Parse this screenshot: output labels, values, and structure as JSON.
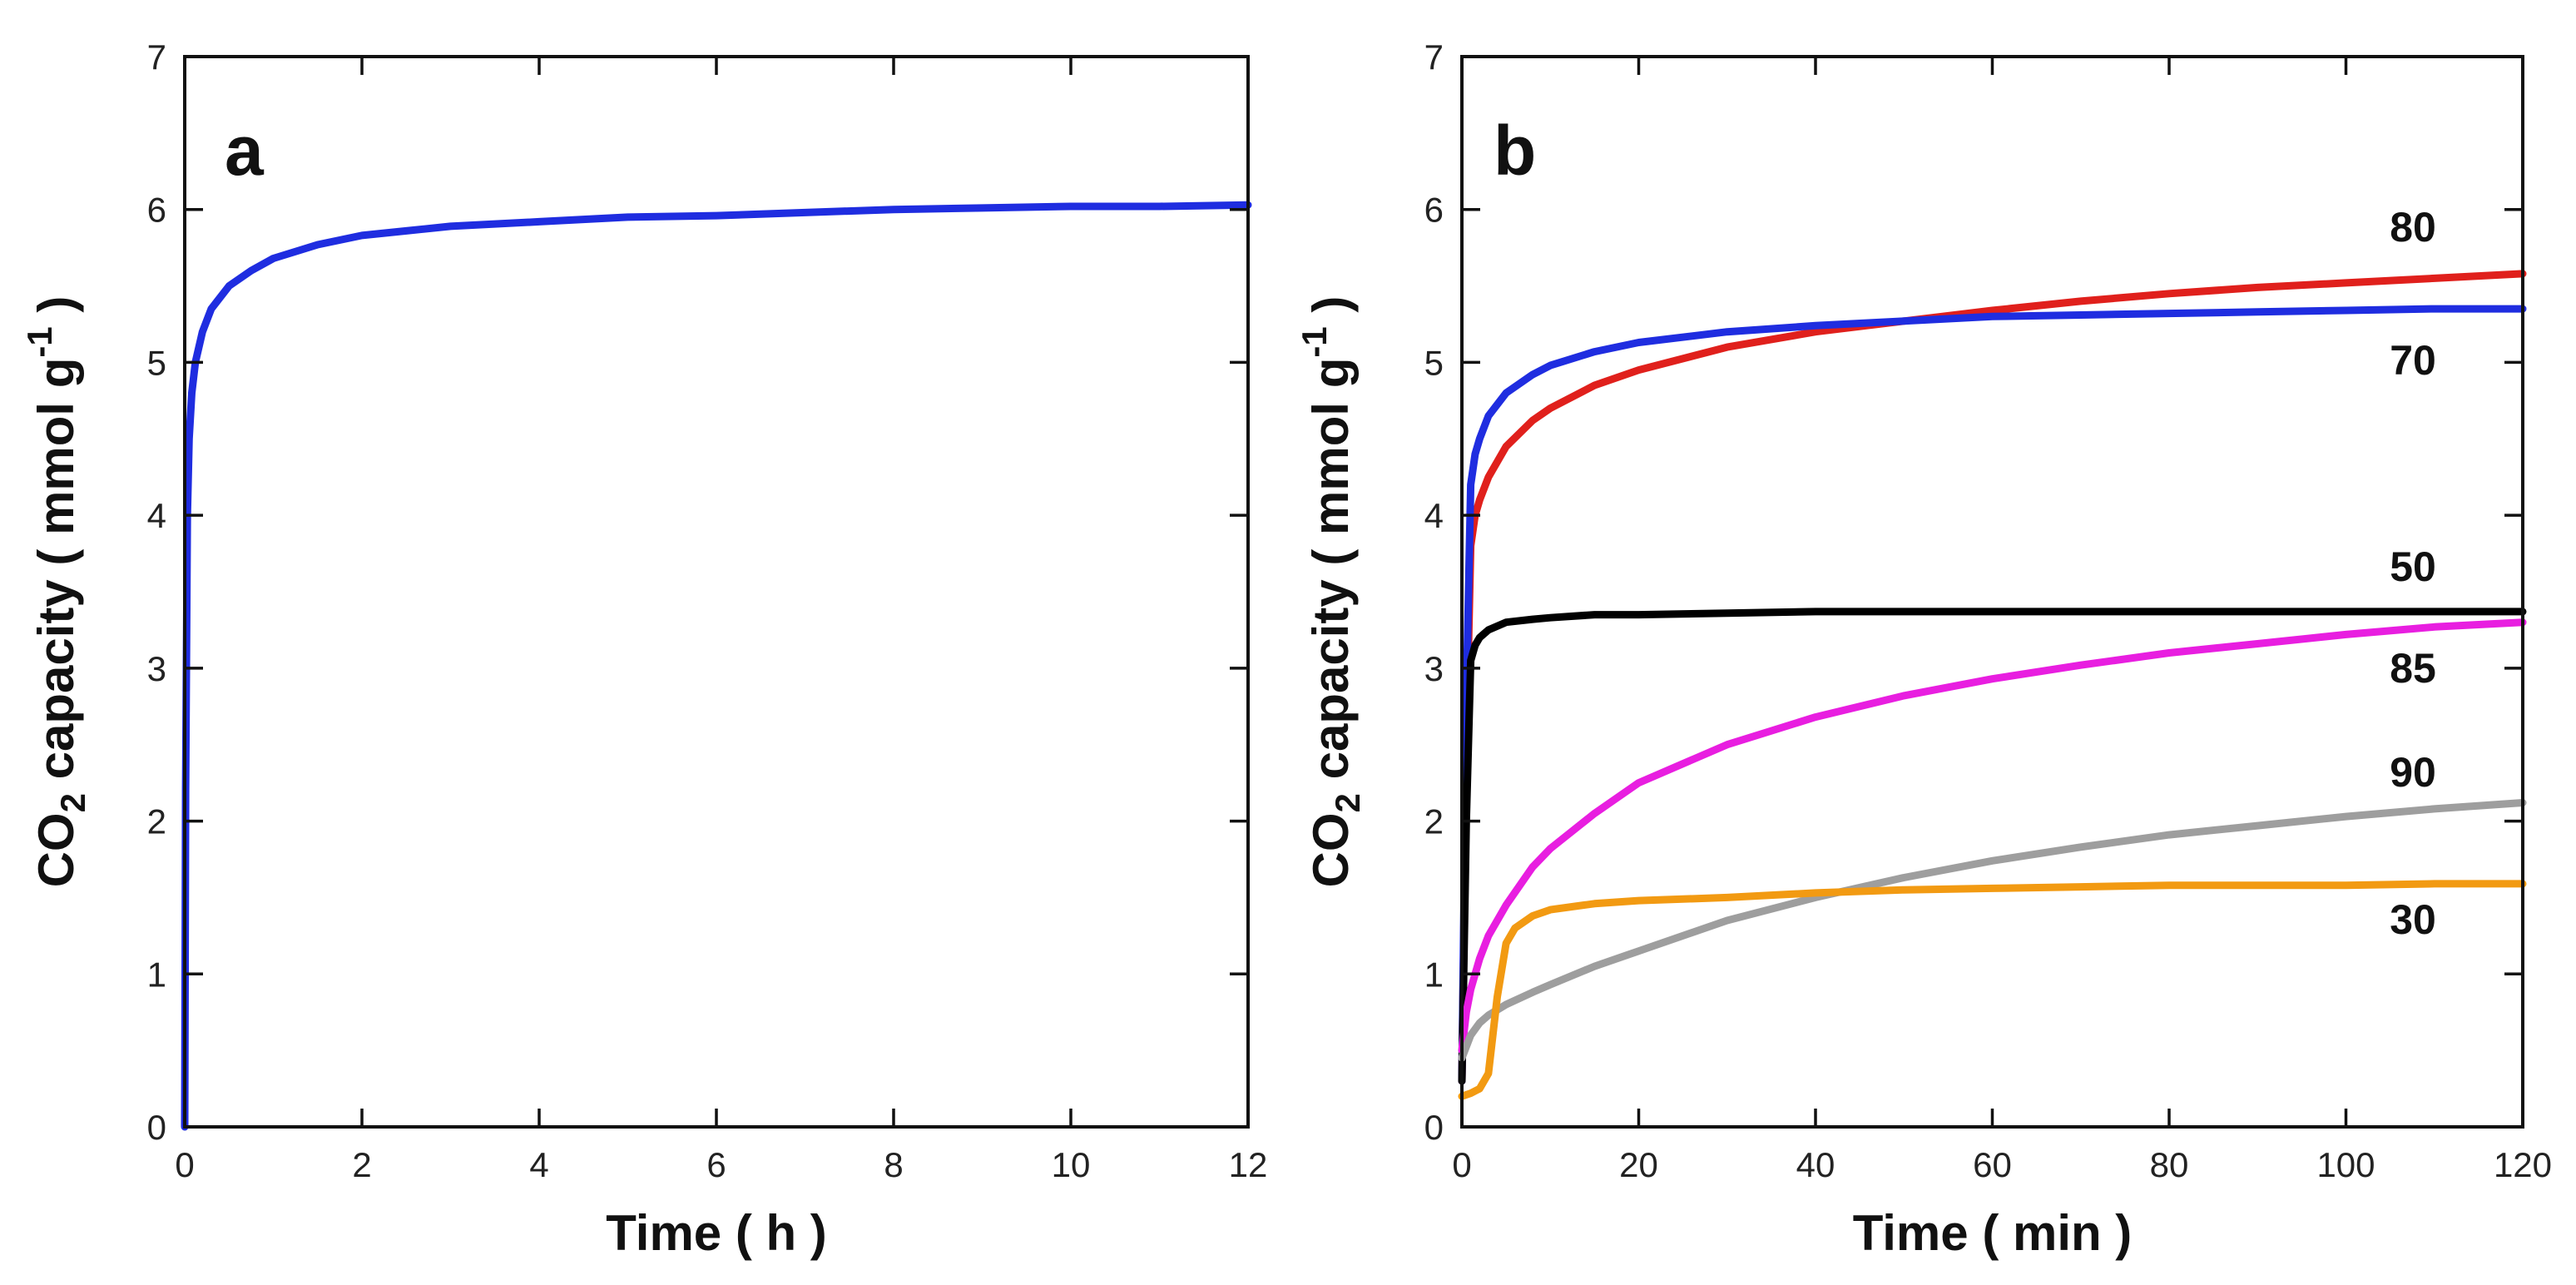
{
  "chart_data": [
    {
      "panel": "a",
      "type": "line",
      "xlabel": "Time ( h )",
      "ylabel": {
        "prefix": "CO",
        "subscript": "2",
        "mid": " capacity ( mmol g",
        "superscript": "-1",
        "suffix": " )"
      },
      "xlim": [
        0,
        12
      ],
      "ylim": [
        0,
        7
      ],
      "xticks": [
        0,
        2,
        4,
        6,
        8,
        10,
        12
      ],
      "yticks": [
        0,
        1,
        2,
        3,
        4,
        5,
        6,
        7
      ],
      "series": [
        {
          "name": "",
          "color": "#1f2de0",
          "x": [
            0,
            0.01,
            0.03,
            0.05,
            0.08,
            0.12,
            0.2,
            0.3,
            0.5,
            0.75,
            1,
            1.5,
            2,
            2.5,
            3,
            4,
            5,
            6,
            7,
            8,
            9,
            10,
            11,
            12
          ],
          "y": [
            0,
            2.2,
            4.0,
            4.5,
            4.8,
            5.0,
            5.2,
            5.35,
            5.5,
            5.6,
            5.68,
            5.77,
            5.83,
            5.86,
            5.89,
            5.92,
            5.95,
            5.96,
            5.98,
            6.0,
            6.01,
            6.02,
            6.02,
            6.03
          ]
        }
      ]
    },
    {
      "panel": "b",
      "type": "line",
      "xlabel": "Time ( min )",
      "ylabel": {
        "prefix": "CO",
        "subscript": "2",
        "mid": " capacity ( mmol g",
        "superscript": "-1",
        "suffix": " )"
      },
      "xlim": [
        0,
        120
      ],
      "ylim": [
        0,
        7
      ],
      "xticks": [
        0,
        20,
        40,
        60,
        80,
        100,
        120
      ],
      "yticks": [
        0,
        1,
        2,
        3,
        4,
        5,
        6,
        7
      ],
      "series": [
        {
          "name": "80",
          "color": "#e0201c",
          "x": [
            0,
            0.5,
            1,
            1.5,
            2,
            3,
            5,
            8,
            10,
            15,
            20,
            30,
            40,
            50,
            60,
            70,
            80,
            90,
            100,
            110,
            120
          ],
          "y": [
            0.3,
            2.5,
            3.8,
            4.0,
            4.1,
            4.25,
            4.45,
            4.62,
            4.7,
            4.85,
            4.95,
            5.1,
            5.2,
            5.27,
            5.34,
            5.4,
            5.45,
            5.49,
            5.52,
            5.55,
            5.58
          ]
        },
        {
          "name": "70",
          "color": "#1f2de0",
          "x": [
            0,
            0.5,
            1,
            1.5,
            2,
            3,
            5,
            8,
            10,
            15,
            20,
            30,
            40,
            50,
            60,
            70,
            80,
            90,
            100,
            110,
            120
          ],
          "y": [
            0.3,
            2.8,
            4.2,
            4.4,
            4.5,
            4.65,
            4.8,
            4.92,
            4.98,
            5.07,
            5.13,
            5.2,
            5.24,
            5.27,
            5.3,
            5.31,
            5.32,
            5.33,
            5.34,
            5.35,
            5.35
          ]
        },
        {
          "name": "50",
          "color": "#000000",
          "x": [
            0,
            0.5,
            1,
            1.5,
            2,
            3,
            5,
            8,
            10,
            15,
            20,
            30,
            40,
            50,
            60,
            70,
            80,
            90,
            100,
            110,
            120
          ],
          "y": [
            0.3,
            2.0,
            3.05,
            3.15,
            3.2,
            3.25,
            3.3,
            3.32,
            3.33,
            3.35,
            3.35,
            3.36,
            3.37,
            3.37,
            3.37,
            3.37,
            3.37,
            3.37,
            3.37,
            3.37,
            3.37
          ]
        },
        {
          "name": "85",
          "color": "#e81ee0",
          "x": [
            0,
            0.5,
            1,
            2,
            3,
            5,
            8,
            10,
            15,
            20,
            30,
            40,
            50,
            60,
            70,
            80,
            90,
            100,
            110,
            120
          ],
          "y": [
            0.5,
            0.75,
            0.9,
            1.1,
            1.25,
            1.45,
            1.7,
            1.82,
            2.05,
            2.25,
            2.5,
            2.68,
            2.82,
            2.93,
            3.02,
            3.1,
            3.16,
            3.22,
            3.27,
            3.3
          ]
        },
        {
          "name": "90",
          "color": "#9e9e9e",
          "x": [
            0,
            1,
            2,
            3,
            5,
            8,
            10,
            15,
            20,
            30,
            40,
            50,
            60,
            70,
            80,
            90,
            100,
            110,
            120
          ],
          "y": [
            0.45,
            0.6,
            0.68,
            0.73,
            0.8,
            0.88,
            0.93,
            1.05,
            1.15,
            1.35,
            1.5,
            1.63,
            1.74,
            1.83,
            1.91,
            1.97,
            2.03,
            2.08,
            2.12
          ]
        },
        {
          "name": "30",
          "color": "#f29a12",
          "x": [
            0,
            1,
            2,
            3,
            4,
            5,
            6,
            8,
            10,
            15,
            20,
            25,
            30,
            40,
            50,
            60,
            70,
            80,
            90,
            100,
            110,
            120
          ],
          "y": [
            0.2,
            0.22,
            0.25,
            0.35,
            0.85,
            1.2,
            1.3,
            1.38,
            1.42,
            1.46,
            1.48,
            1.49,
            1.5,
            1.53,
            1.55,
            1.56,
            1.57,
            1.58,
            1.58,
            1.58,
            1.59,
            1.59
          ]
        }
      ]
    }
  ]
}
